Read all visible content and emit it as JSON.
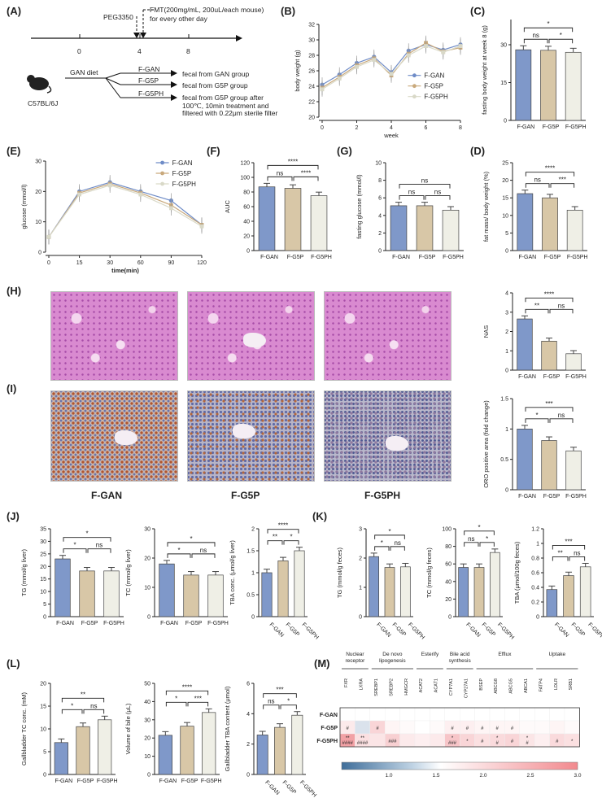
{
  "panel_labels": {
    "A": "(A)",
    "B": "(B)",
    "C": "(C)",
    "D": "(D)",
    "E": "(E)",
    "F": "(F)",
    "G": "(G)",
    "H": "(H)",
    "I": "(I)",
    "J": "(J)",
    "K": "(K)",
    "L": "(L)",
    "M": "(M)"
  },
  "colors": {
    "F-GAN": "#7f98c9",
    "F-G5P": "#d8c7a7",
    "F-G5PH": "#efefe6"
  },
  "groups": [
    "F-GAN",
    "F-G5P",
    "F-G5PH"
  ],
  "panel_A": {
    "timeline_ticks": [
      "0",
      "4",
      "8"
    ],
    "peg": "PEG3350",
    "fmt": "FMT(200mg/mL, 200uL/each mouse)",
    "fmt2": "for every other day",
    "mouse": "C57BL/6J",
    "diet": "GAN diet",
    "arms": [
      {
        "group": "F-GAN",
        "desc": "fecal from GAN group"
      },
      {
        "group": "F-G5P",
        "desc": "fecal from G5P group"
      },
      {
        "group": "F-G5PH",
        "desc": "fecal from G5P group after"
      }
    ],
    "extra1": "100℃, 10min treatment and",
    "extra2": "filtered with 0.22μm sterile filter"
  },
  "tissue_labels": [
    "F-GAN",
    "F-G5P",
    "F-G5PH"
  ],
  "chart_data": [
    {
      "id": "B",
      "type": "line",
      "xlabel": "week",
      "ylabel": "body weight (g)",
      "ylim": [
        20,
        32
      ],
      "yticks": [
        20,
        22,
        24,
        26,
        28,
        30,
        32
      ],
      "x": [
        0,
        1,
        2,
        3,
        4,
        5,
        6,
        7,
        8
      ],
      "xticks": [
        0,
        2,
        4,
        6,
        8
      ],
      "series": [
        {
          "name": "F-GAN",
          "values": [
            24.2,
            25.5,
            27.0,
            27.8,
            25.8,
            28.6,
            29.4,
            28.7,
            29.4
          ]
        },
        {
          "name": "F-G5P",
          "values": [
            23.8,
            25.2,
            26.7,
            27.6,
            25.4,
            28.2,
            29.6,
            28.5,
            29.0
          ]
        },
        {
          "name": "F-G5PH",
          "values": [
            23.6,
            25.0,
            26.5,
            27.4,
            25.6,
            28.0,
            29.2,
            28.4,
            29.2
          ]
        }
      ]
    },
    {
      "id": "C",
      "type": "bar",
      "ylabel": "fasting body weight at week 8 (g)",
      "ylim": [
        0,
        40
      ],
      "yticks": [
        0,
        15,
        30
      ],
      "categories": [
        "F-GAN",
        "F-G5P",
        "F-G5PH"
      ],
      "values": [
        28,
        27.8,
        27
      ],
      "sig": [
        {
          "a": 0,
          "b": 1,
          "label": "ns"
        },
        {
          "a": 1,
          "b": 2,
          "label": "*"
        },
        {
          "a": 0,
          "b": 2,
          "label": "*"
        }
      ]
    },
    {
      "id": "E",
      "type": "line",
      "xlabel": "time(min)",
      "ylabel": "glucose (mmol/l)",
      "ylim": [
        0,
        30
      ],
      "yticks": [
        0,
        10,
        20,
        30
      ],
      "x": [
        "0",
        "15",
        "30",
        "60",
        "90",
        "120"
      ],
      "series": [
        {
          "name": "F-GAN",
          "values": [
            5,
            20,
            23,
            20,
            17,
            9
          ]
        },
        {
          "name": "F-G5P",
          "values": [
            5,
            19.5,
            22.5,
            19.5,
            15.5,
            9
          ]
        },
        {
          "name": "F-G5PH",
          "values": [
            5,
            19,
            22,
            19,
            14.5,
            8.5
          ]
        }
      ]
    },
    {
      "id": "F",
      "type": "bar",
      "ylabel": "AUC",
      "ylim": [
        0,
        120
      ],
      "yticks": [
        0,
        20,
        40,
        60,
        80,
        100,
        120
      ],
      "categories": [
        "F-GAN",
        "F-G5P",
        "F-G5PH"
      ],
      "values": [
        87,
        85,
        75
      ],
      "sig": [
        {
          "a": 0,
          "b": 1,
          "label": "ns"
        },
        {
          "a": 1,
          "b": 2,
          "label": "****"
        },
        {
          "a": 0,
          "b": 2,
          "label": "****"
        }
      ]
    },
    {
      "id": "G",
      "type": "bar",
      "ylabel": "fasting glucose (mmol/l)",
      "ylim": [
        0,
        10
      ],
      "yticks": [
        0,
        2,
        4,
        6,
        8,
        10
      ],
      "categories": [
        "F-GAN",
        "F-G5P",
        "F-G5PH"
      ],
      "values": [
        5.1,
        5.1,
        4.6
      ],
      "sig": [
        {
          "a": 0,
          "b": 1,
          "label": "ns"
        },
        {
          "a": 1,
          "b": 2,
          "label": "ns"
        },
        {
          "a": 0,
          "b": 2,
          "label": "ns"
        }
      ]
    },
    {
      "id": "D",
      "type": "bar",
      "ylabel": "fat mass/ body weight (%)",
      "ylim": [
        0,
        25
      ],
      "yticks": [
        0,
        5,
        10,
        15,
        20,
        25
      ],
      "categories": [
        "F-GAN",
        "F-G5P",
        "F-G5PH"
      ],
      "values": [
        16.2,
        15,
        11.5
      ],
      "sig": [
        {
          "a": 0,
          "b": 1,
          "label": "ns"
        },
        {
          "a": 1,
          "b": 2,
          "label": "***"
        },
        {
          "a": 0,
          "b": 2,
          "label": "****"
        }
      ]
    },
    {
      "id": "H",
      "type": "bar",
      "ylabel": "NAS",
      "ylim": [
        0,
        4
      ],
      "yticks": [
        0,
        1,
        2,
        3,
        4
      ],
      "categories": [
        "F-GAN",
        "F-G5P",
        "F-G5PH"
      ],
      "values": [
        2.65,
        1.5,
        0.85
      ],
      "sig": [
        {
          "a": 0,
          "b": 1,
          "label": "**"
        },
        {
          "a": 1,
          "b": 2,
          "label": "ns"
        },
        {
          "a": 0,
          "b": 2,
          "label": "****"
        }
      ]
    },
    {
      "id": "I",
      "type": "bar",
      "ylabel": "ORO positive area (fold change)",
      "ylim": [
        0,
        1.5
      ],
      "yticks": [
        0.0,
        0.5,
        1.0,
        1.5
      ],
      "categories": [
        "F-GAN",
        "F-G5P",
        "F-G5PH"
      ],
      "values": [
        1.0,
        0.81,
        0.64
      ],
      "sig": [
        {
          "a": 0,
          "b": 1,
          "label": "*"
        },
        {
          "a": 1,
          "b": 2,
          "label": "ns"
        },
        {
          "a": 0,
          "b": 2,
          "label": "***"
        }
      ]
    },
    {
      "id": "J1",
      "type": "bar",
      "ylabel": "TG (mmol/g liver)",
      "ylim": [
        0,
        35
      ],
      "yticks": [
        0,
        5,
        10,
        15,
        20,
        25,
        30,
        35
      ],
      "categories": [
        "F-GAN",
        "F-G5P",
        "F-G5PH"
      ],
      "values": [
        23,
        18.2,
        18.2
      ],
      "sig": [
        {
          "a": 0,
          "b": 1,
          "label": "*"
        },
        {
          "a": 1,
          "b": 2,
          "label": "ns"
        },
        {
          "a": 0,
          "b": 2,
          "label": "*"
        }
      ]
    },
    {
      "id": "J2",
      "type": "bar",
      "ylabel": "TC (mmol/g liver)",
      "ylim": [
        0,
        30
      ],
      "yticks": [
        0,
        10,
        20,
        30
      ],
      "categories": [
        "F-GAN",
        "F-G5P",
        "F-G5PH"
      ],
      "values": [
        18,
        14.2,
        14.2
      ],
      "sig": [
        {
          "a": 0,
          "b": 1,
          "label": "*"
        },
        {
          "a": 1,
          "b": 2,
          "label": "ns"
        },
        {
          "a": 0,
          "b": 2,
          "label": "*"
        }
      ]
    },
    {
      "id": "J3",
      "type": "bar",
      "ylabel": "TBA conc. (μmol/g liver)",
      "ylim": [
        0,
        2
      ],
      "yticks": [
        0.0,
        0.5,
        1.0,
        1.5,
        2.0
      ],
      "categories": [
        "F-GAN",
        "F-G5P",
        "F-G5PH"
      ],
      "values": [
        1.0,
        1.27,
        1.5
      ],
      "sig": [
        {
          "a": 0,
          "b": 1,
          "label": "**"
        },
        {
          "a": 1,
          "b": 2,
          "label": "*"
        },
        {
          "a": 0,
          "b": 2,
          "label": "****"
        }
      ]
    },
    {
      "id": "K1",
      "type": "bar",
      "ylabel": "TG (mmol/g feces)",
      "ylim": [
        0,
        3
      ],
      "yticks": [
        0,
        1,
        2,
        3
      ],
      "categories": [
        "F-GAN",
        "F-G5P",
        "F-G5PH"
      ],
      "values": [
        2.05,
        1.68,
        1.7
      ],
      "sig": [
        {
          "a": 0,
          "b": 1,
          "label": "*"
        },
        {
          "a": 1,
          "b": 2,
          "label": "ns"
        },
        {
          "a": 0,
          "b": 2,
          "label": "*"
        }
      ]
    },
    {
      "id": "K2",
      "type": "bar",
      "ylabel": "TC (mmol/g feces)",
      "ylim": [
        0,
        100
      ],
      "yticks": [
        0,
        20,
        40,
        60,
        80,
        100
      ],
      "categories": [
        "F-GAN",
        "F-G5P",
        "F-G5PH"
      ],
      "values": [
        56,
        56,
        73
      ],
      "sig": [
        {
          "a": 0,
          "b": 1,
          "label": "ns"
        },
        {
          "a": 1,
          "b": 2,
          "label": "*"
        },
        {
          "a": 0,
          "b": 2,
          "label": "*"
        }
      ]
    },
    {
      "id": "K3",
      "type": "bar",
      "ylabel": "TBA (μmol/100g feces)",
      "ylim": [
        0,
        1.2
      ],
      "yticks": [
        0.0,
        0.2,
        0.4,
        0.6,
        0.8,
        1.0,
        1.2
      ],
      "categories": [
        "F-GAN",
        "F-G5P",
        "F-G5PH"
      ],
      "values": [
        0.37,
        0.56,
        0.68
      ],
      "sig": [
        {
          "a": 0,
          "b": 1,
          "label": "**"
        },
        {
          "a": 1,
          "b": 2,
          "label": "ns"
        },
        {
          "a": 0,
          "b": 2,
          "label": "***"
        }
      ]
    },
    {
      "id": "L1",
      "type": "bar",
      "ylabel": "Gallbladder TC conc. (mM)",
      "ylim": [
        0,
        20
      ],
      "yticks": [
        0,
        5,
        10,
        15,
        20
      ],
      "categories": [
        "F-GAN",
        "F-G5P",
        "F-G5PH"
      ],
      "values": [
        7,
        10.5,
        12
      ],
      "sig": [
        {
          "a": 0,
          "b": 1,
          "label": "*"
        },
        {
          "a": 1,
          "b": 2,
          "label": "ns"
        },
        {
          "a": 0,
          "b": 2,
          "label": "**"
        }
      ]
    },
    {
      "id": "L2",
      "type": "bar",
      "ylabel": "Volume of bile (μL)",
      "ylim": [
        0,
        50
      ],
      "yticks": [
        0,
        10,
        20,
        30,
        40,
        50
      ],
      "categories": [
        "F-GAN",
        "F-G5P",
        "F-G5PH"
      ],
      "values": [
        21.5,
        26.5,
        34
      ],
      "sig": [
        {
          "a": 0,
          "b": 1,
          "label": "*"
        },
        {
          "a": 1,
          "b": 2,
          "label": "***"
        },
        {
          "a": 0,
          "b": 2,
          "label": "****"
        }
      ]
    },
    {
      "id": "L3",
      "type": "bar",
      "ylabel": "Gallbladder TBA content (μmol)",
      "ylim": [
        0,
        6
      ],
      "yticks": [
        0,
        2,
        4,
        6
      ],
      "categories": [
        "F-GAN",
        "F-G5P",
        "F-G5PH"
      ],
      "values": [
        2.6,
        3.1,
        3.9
      ],
      "sig": [
        {
          "a": 0,
          "b": 1,
          "label": "ns"
        },
        {
          "a": 1,
          "b": 2,
          "label": "*"
        },
        {
          "a": 0,
          "b": 2,
          "label": "***"
        }
      ]
    },
    {
      "id": "M",
      "type": "heatmap",
      "categories_header": [
        {
          "label": "Nuclear receptor",
          "span": 2
        },
        {
          "label": "De novo lipogenesis",
          "span": 3
        },
        {
          "label": "Esterify",
          "span": 2
        },
        {
          "label": "Bile acid synthesis",
          "span": 2
        },
        {
          "label": "Efflux",
          "span": 4
        },
        {
          "label": "Uptake",
          "span": 3
        }
      ],
      "genes": [
        "FXR",
        "LXRA",
        "SREBP1",
        "SREBP2",
        "HMGCR",
        "ACAT2",
        "ACAT1",
        "CYP7A1",
        "CYP27A1",
        "BSEP",
        "ABCG8",
        "ABCG5",
        "ABCA1",
        "FATP4",
        "LDLR",
        "SRB1"
      ],
      "rows": [
        "F-GAN",
        "F-G5P",
        "F-G5PH"
      ],
      "values": [
        [
          1,
          1,
          1,
          1,
          1,
          1,
          1,
          1,
          1,
          1,
          1,
          1,
          1,
          1,
          1,
          1
        ],
        [
          1.4,
          0.9,
          1.8,
          1.2,
          1.1,
          1.0,
          1.1,
          1.3,
          1.3,
          1.2,
          1.2,
          1.2,
          1.1,
          1.1,
          1.2,
          1.1
        ],
        [
          2.8,
          1.6,
          1.5,
          1.9,
          1.4,
          1.3,
          1.4,
          2.1,
          1.8,
          1.6,
          1.7,
          1.8,
          1.5,
          1.3,
          1.7,
          1.6
        ]
      ],
      "marks": [
        [
          "",
          "",
          "",
          "",
          "",
          "",
          "",
          "",
          "",
          "",
          "",
          "",
          "",
          "",
          "",
          ""
        ],
        [
          "#",
          "",
          "#",
          "",
          "",
          "",
          "",
          "#",
          "#",
          "#",
          "#",
          "#",
          "",
          "",
          "",
          ""
        ],
        [
          "**\n####",
          "**\n####",
          "",
          "###",
          "",
          "",
          "",
          "*\n###",
          "*",
          "#",
          "*\n#",
          "#",
          "*\n#",
          "",
          "#",
          "*"
        ]
      ],
      "scale": [
        1.0,
        1.5,
        2.0,
        2.5,
        3.0
      ]
    }
  ]
}
